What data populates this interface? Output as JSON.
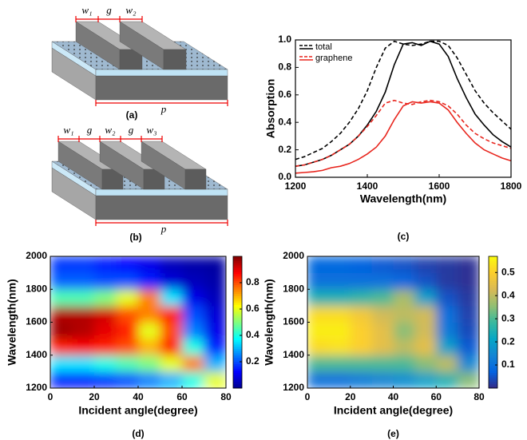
{
  "diagrams": [
    {
      "panel": "(a)",
      "dims": [
        "w₁",
        "g",
        "w₂"
      ],
      "period": "p"
    },
    {
      "panel": "(b)",
      "dims": [
        "w₁",
        "g",
        "w₂",
        "g",
        "w₃"
      ],
      "period": "p"
    }
  ],
  "chart_data": [
    {
      "type": "line",
      "panel": "(c)",
      "xlabel": "Wavelength(nm)",
      "ylabel": "Absorption",
      "x": [
        1200,
        1225,
        1250,
        1275,
        1300,
        1325,
        1350,
        1375,
        1400,
        1425,
        1450,
        1475,
        1500,
        1525,
        1550,
        1575,
        1600,
        1625,
        1650,
        1675,
        1700,
        1725,
        1750,
        1775,
        1800
      ],
      "xlim": [
        1200,
        1800
      ],
      "xticks": [
        1200,
        1400,
        1600,
        1800
      ],
      "ylim": [
        0,
        1
      ],
      "yticks": [
        {
          "value": 0,
          "label": "0.0"
        },
        {
          "value": 0.2,
          "label": "0.2"
        },
        {
          "value": 0.4,
          "label": "0.4"
        },
        {
          "value": 0.6,
          "label": "0.6"
        },
        {
          "value": 0.8,
          "label": "0.8"
        },
        {
          "value": 1,
          "label": "1.0"
        }
      ],
      "legend": "upper-left",
      "series": [
        {
          "name": "total",
          "color": "#000000",
          "dash": true,
          "values": [
            0.13,
            0.15,
            0.18,
            0.21,
            0.26,
            0.32,
            0.4,
            0.5,
            0.63,
            0.8,
            0.94,
            0.99,
            0.97,
            0.96,
            0.97,
            0.99,
            0.99,
            0.96,
            0.87,
            0.75,
            0.63,
            0.54,
            0.47,
            0.41,
            0.35
          ]
        },
        {
          "color": "#000000",
          "dash": false,
          "values": [
            0.08,
            0.09,
            0.11,
            0.13,
            0.16,
            0.2,
            0.24,
            0.3,
            0.38,
            0.48,
            0.62,
            0.82,
            0.97,
            0.98,
            0.96,
            0.99,
            0.97,
            0.88,
            0.72,
            0.58,
            0.46,
            0.38,
            0.31,
            0.26,
            0.22
          ]
        },
        {
          "name": "graphene",
          "color": "#e8261e",
          "dash": true,
          "values": [
            0.08,
            0.09,
            0.11,
            0.13,
            0.16,
            0.2,
            0.24,
            0.3,
            0.37,
            0.45,
            0.54,
            0.56,
            0.54,
            0.53,
            0.55,
            0.56,
            0.55,
            0.52,
            0.46,
            0.38,
            0.32,
            0.28,
            0.25,
            0.23,
            0.21
          ]
        },
        {
          "color": "#e8261e",
          "dash": false,
          "values": [
            0.03,
            0.035,
            0.04,
            0.05,
            0.07,
            0.08,
            0.1,
            0.13,
            0.17,
            0.22,
            0.3,
            0.42,
            0.52,
            0.55,
            0.54,
            0.55,
            0.54,
            0.49,
            0.4,
            0.32,
            0.25,
            0.2,
            0.17,
            0.14,
            0.12
          ]
        }
      ]
    },
    {
      "type": "heatmap",
      "panel": "(d)",
      "xlabel": "Incident angle(degree)",
      "ylabel": "Wavelength(nm)",
      "xbins": [
        0,
        10,
        20,
        30,
        40,
        50,
        60,
        70,
        80
      ],
      "ybins": [
        1200,
        1300,
        1400,
        1500,
        1600,
        1700,
        1800,
        1900,
        2000
      ],
      "xlim": [
        0,
        80
      ],
      "xticks": [
        0,
        20,
        40,
        60,
        80
      ],
      "ylim": [
        1200,
        2000
      ],
      "yticks": [
        1200,
        1400,
        1600,
        1800,
        2000
      ],
      "zlim": [
        0,
        1
      ],
      "zticks": [
        0.2,
        0.4,
        0.6,
        0.8
      ],
      "colormap": "jet",
      "values": [
        [
          0.15,
          0.15,
          0.17,
          0.2,
          0.25,
          0.3,
          0.4,
          0.6
        ],
        [
          0.35,
          0.35,
          0.4,
          0.45,
          0.5,
          0.6,
          0.75,
          0.3
        ],
        [
          0.85,
          0.88,
          0.85,
          0.8,
          0.7,
          0.85,
          0.4,
          0.15
        ],
        [
          0.97,
          0.95,
          0.9,
          0.85,
          0.6,
          0.8,
          0.25,
          0.1
        ],
        [
          0.95,
          0.95,
          0.92,
          0.8,
          0.75,
          0.85,
          0.2,
          0.08
        ],
        [
          0.45,
          0.45,
          0.5,
          0.6,
          0.75,
          0.35,
          0.1,
          0.05
        ],
        [
          0.22,
          0.22,
          0.2,
          0.2,
          0.15,
          0.08,
          0.05,
          0.03
        ],
        [
          0.18,
          0.18,
          0.15,
          0.13,
          0.1,
          0.05,
          0.03,
          0.02
        ]
      ]
    },
    {
      "type": "heatmap",
      "panel": "(e)",
      "xlabel": "Incident angle(degree)",
      "ylabel": "Wavelength(nm)",
      "xbins": [
        0,
        10,
        20,
        30,
        40,
        50,
        60,
        70,
        80
      ],
      "ybins": [
        1200,
        1300,
        1400,
        1500,
        1600,
        1700,
        1800,
        1900,
        2000
      ],
      "xlim": [
        0,
        80
      ],
      "xticks": [
        0,
        20,
        40,
        60,
        80
      ],
      "ylim": [
        1200,
        2000
      ],
      "yticks": [
        1200,
        1400,
        1600,
        1800,
        2000
      ],
      "zlim": [
        0,
        0.57
      ],
      "zticks": [
        0.1,
        0.2,
        0.3,
        0.4,
        0.5
      ],
      "colormap": "parula",
      "values": [
        [
          0.1,
          0.1,
          0.12,
          0.14,
          0.16,
          0.2,
          0.25,
          0.35
        ],
        [
          0.3,
          0.3,
          0.3,
          0.3,
          0.3,
          0.35,
          0.4,
          0.15
        ],
        [
          0.52,
          0.53,
          0.5,
          0.45,
          0.4,
          0.45,
          0.2,
          0.06
        ],
        [
          0.55,
          0.55,
          0.5,
          0.45,
          0.35,
          0.42,
          0.12,
          0.04
        ],
        [
          0.52,
          0.52,
          0.48,
          0.42,
          0.4,
          0.42,
          0.1,
          0.03
        ],
        [
          0.25,
          0.25,
          0.27,
          0.3,
          0.38,
          0.2,
          0.05,
          0.02
        ],
        [
          0.1,
          0.1,
          0.1,
          0.1,
          0.08,
          0.05,
          0.02,
          0.01
        ],
        [
          0.08,
          0.08,
          0.07,
          0.06,
          0.05,
          0.03,
          0.02,
          0.01
        ]
      ]
    }
  ]
}
